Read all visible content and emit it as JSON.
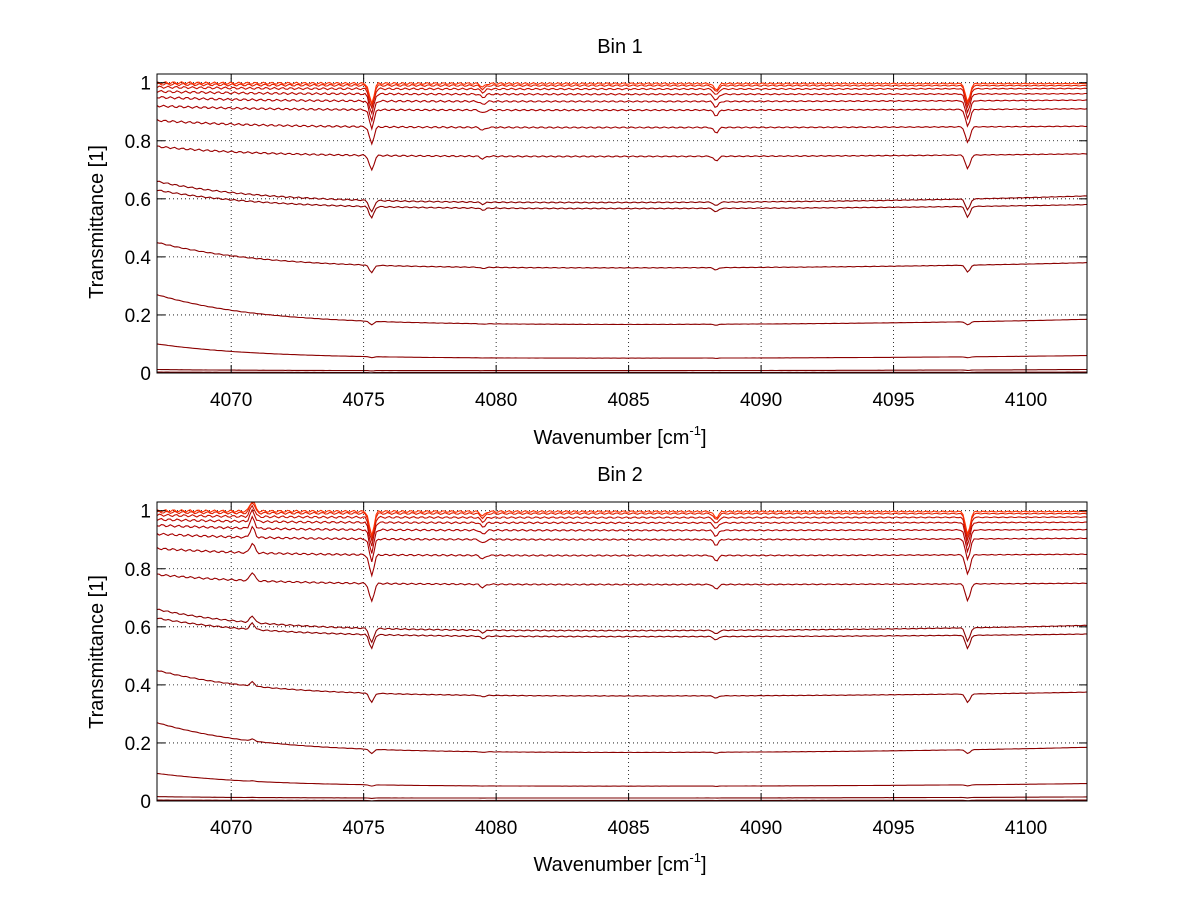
{
  "figure": {
    "charts_note": "two stacked panels"
  },
  "chart_data": [
    {
      "type": "line",
      "title": "Bin 1",
      "xlabel_main": "Wavenumber [cm",
      "xlabel_sup": "-1",
      "xlabel_end": "]",
      "ylabel": "Transmittance [1]",
      "xlim": [
        4067.2,
        4102.3
      ],
      "ylim": [
        0,
        1.03
      ],
      "xticks": [
        4070,
        4075,
        4080,
        4085,
        4090,
        4095,
        4100
      ],
      "yticks": [
        0,
        0.2,
        0.4,
        0.6,
        0.8,
        1
      ],
      "ytick_labels": [
        "0",
        "0.2",
        "0.4",
        "0.6",
        "0.8",
        "1"
      ],
      "grid": true,
      "features": [
        {
          "x": 4075.3,
          "depth": 0.07
        },
        {
          "x": 4079.5,
          "depth": 0.012
        },
        {
          "x": 4088.3,
          "depth": 0.022
        },
        {
          "x": 4097.8,
          "depth": 0.065
        }
      ],
      "series": [
        {
          "name": "s1",
          "start": 0.003,
          "level": 0.002,
          "end": 0.003,
          "color": "#7a0000"
        },
        {
          "name": "s2",
          "start": 0.012,
          "level": 0.008,
          "end": 0.012,
          "color": "#7a0000"
        },
        {
          "name": "s3",
          "start": 0.1,
          "level": 0.05,
          "end": 0.06,
          "color": "#8b0000"
        },
        {
          "name": "s4",
          "start": 0.27,
          "level": 0.165,
          "end": 0.185,
          "color": "#8b0000"
        },
        {
          "name": "s5",
          "start": 0.45,
          "level": 0.36,
          "end": 0.38,
          "color": "#8b0000"
        },
        {
          "name": "s6",
          "start": 0.63,
          "level": 0.565,
          "end": 0.58,
          "color": "#8b0000"
        },
        {
          "name": "s7",
          "start": 0.66,
          "level": 0.585,
          "end": 0.61,
          "color": "#8b0000"
        },
        {
          "name": "s8",
          "start": 0.78,
          "level": 0.745,
          "end": 0.755,
          "color": "#990000"
        },
        {
          "name": "s9",
          "start": 0.87,
          "level": 0.845,
          "end": 0.85,
          "color": "#a00000"
        },
        {
          "name": "s10",
          "start": 0.92,
          "level": 0.905,
          "end": 0.91,
          "color": "#a80000"
        },
        {
          "name": "s11",
          "start": 0.95,
          "level": 0.935,
          "end": 0.94,
          "color": "#b00000"
        },
        {
          "name": "s12",
          "start": 0.97,
          "level": 0.96,
          "end": 0.962,
          "color": "#b80800"
        },
        {
          "name": "s13",
          "start": 0.985,
          "level": 0.978,
          "end": 0.98,
          "color": "#c81000"
        },
        {
          "name": "s14",
          "start": 0.995,
          "level": 0.99,
          "end": 0.99,
          "color": "#e02000"
        },
        {
          "name": "s15",
          "start": 1.0,
          "level": 0.997,
          "end": 0.997,
          "color": "#ff3000"
        }
      ]
    },
    {
      "type": "line",
      "title": "Bin 2",
      "xlabel_main": "Wavenumber [cm",
      "xlabel_sup": "-1",
      "xlabel_end": "]",
      "ylabel": "Transmittance [1]",
      "xlim": [
        4067.2,
        4102.3
      ],
      "ylim": [
        0,
        1.03
      ],
      "xticks": [
        4070,
        4075,
        4080,
        4085,
        4090,
        4095,
        4100
      ],
      "yticks": [
        0,
        0.2,
        0.4,
        0.6,
        0.8,
        1
      ],
      "ytick_labels": [
        "0",
        "0.2",
        "0.4",
        "0.6",
        "0.8",
        "1"
      ],
      "grid": true,
      "features": [
        {
          "x": 4070.8,
          "depth": -0.04
        },
        {
          "x": 4075.3,
          "depth": 0.085
        },
        {
          "x": 4079.5,
          "depth": 0.015
        },
        {
          "x": 4088.3,
          "depth": 0.022
        },
        {
          "x": 4097.8,
          "depth": 0.08
        }
      ],
      "series": [
        {
          "name": "s1",
          "start": 0.003,
          "level": 0.002,
          "end": 0.003,
          "color": "#7a0000"
        },
        {
          "name": "s2",
          "start": 0.015,
          "level": 0.01,
          "end": 0.014,
          "color": "#7a0000"
        },
        {
          "name": "s3",
          "start": 0.095,
          "level": 0.05,
          "end": 0.06,
          "color": "#8b0000"
        },
        {
          "name": "s4",
          "start": 0.27,
          "level": 0.165,
          "end": 0.185,
          "color": "#8b0000"
        },
        {
          "name": "s5",
          "start": 0.45,
          "level": 0.36,
          "end": 0.375,
          "color": "#8b0000"
        },
        {
          "name": "s6",
          "start": 0.63,
          "level": 0.565,
          "end": 0.575,
          "color": "#8b0000"
        },
        {
          "name": "s7",
          "start": 0.66,
          "level": 0.585,
          "end": 0.605,
          "color": "#8b0000"
        },
        {
          "name": "s8",
          "start": 0.78,
          "level": 0.745,
          "end": 0.75,
          "color": "#990000"
        },
        {
          "name": "s9",
          "start": 0.87,
          "level": 0.845,
          "end": 0.85,
          "color": "#a00000"
        },
        {
          "name": "s10",
          "start": 0.92,
          "level": 0.9,
          "end": 0.905,
          "color": "#a80000"
        },
        {
          "name": "s11",
          "start": 0.95,
          "level": 0.932,
          "end": 0.935,
          "color": "#b00000"
        },
        {
          "name": "s12",
          "start": 0.97,
          "level": 0.958,
          "end": 0.96,
          "color": "#b80800"
        },
        {
          "name": "s13",
          "start": 0.985,
          "level": 0.976,
          "end": 0.978,
          "color": "#c81000"
        },
        {
          "name": "s14",
          "start": 0.995,
          "level": 0.99,
          "end": 0.99,
          "color": "#e02000"
        },
        {
          "name": "s15",
          "start": 1.0,
          "level": 0.997,
          "end": 0.997,
          "color": "#ff3000"
        }
      ]
    }
  ]
}
